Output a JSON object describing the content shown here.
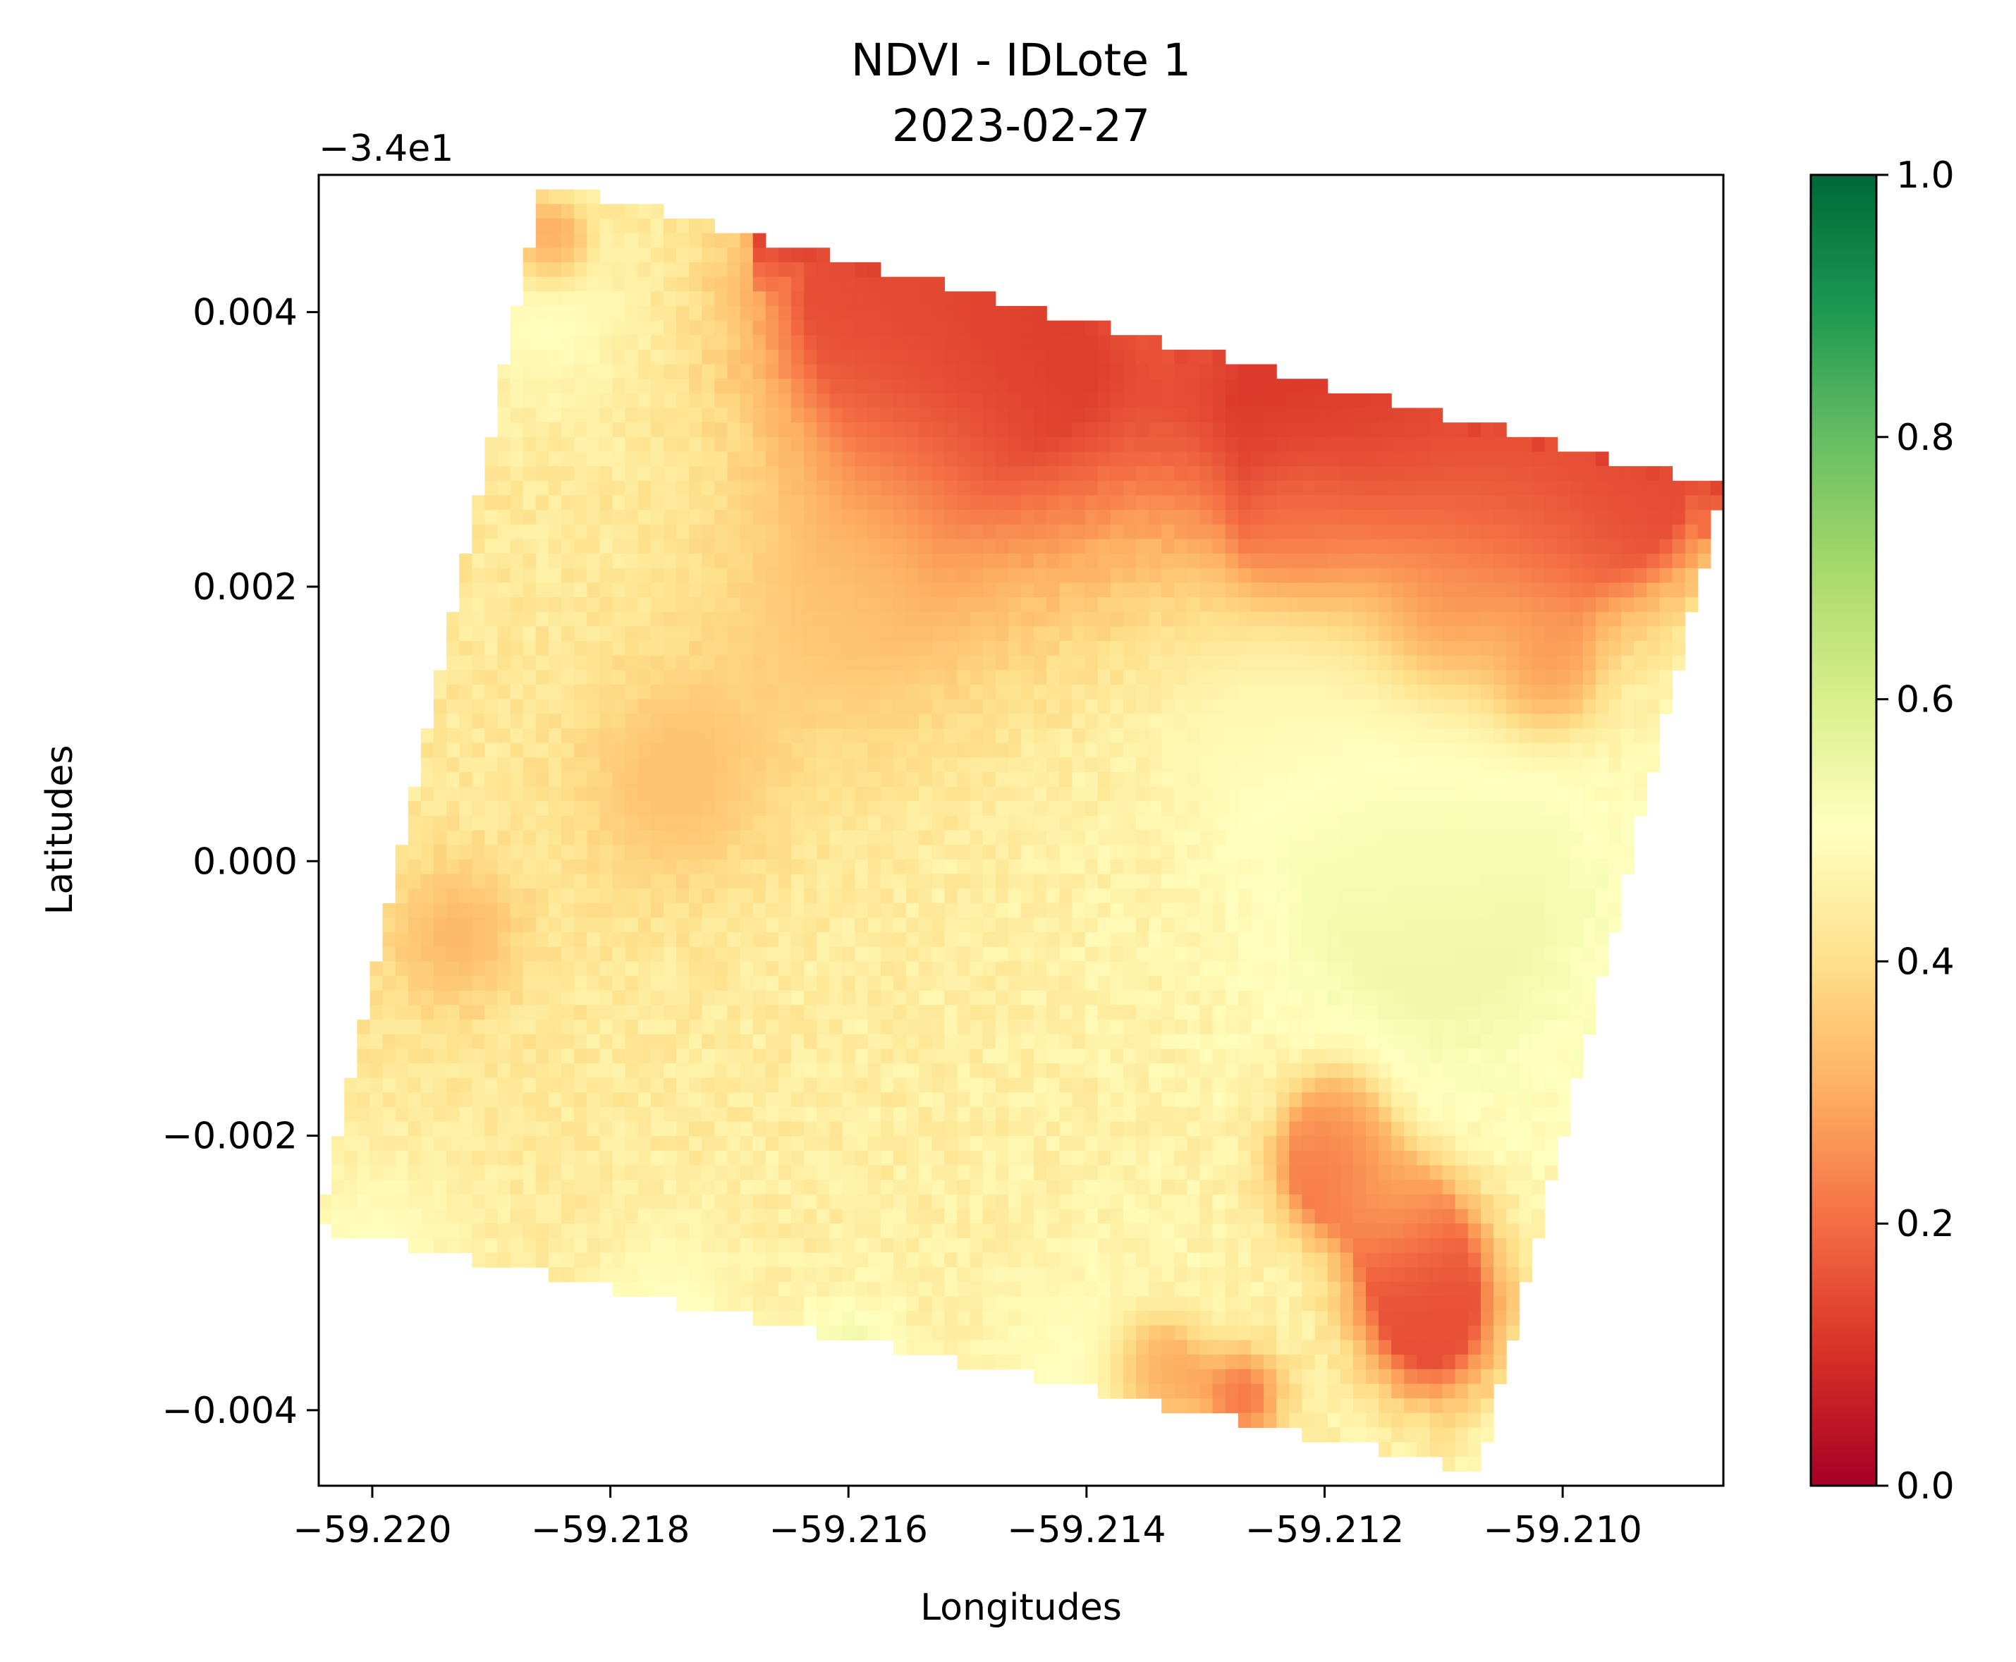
{
  "chart_data": {
    "type": "heatmap",
    "title": "NDVI - IDLote 1",
    "subtitle": "2023-02-27",
    "xlabel": "Longitudes",
    "ylabel": "Latitudes",
    "y_offset_text": "−3.4e1",
    "x_ticks": [
      -59.22,
      -59.218,
      -59.216,
      -59.214,
      -59.212,
      -59.21
    ],
    "x_tick_labels": [
      "−59.220",
      "−59.218",
      "−59.216",
      "−59.214",
      "−59.212",
      "−59.210"
    ],
    "xlim": [
      -59.22045,
      -59.20865
    ],
    "y_ticks": [
      0.004,
      0.002,
      0.0,
      -0.002,
      -0.004
    ],
    "y_tick_labels": [
      "0.004",
      "0.002",
      "0.000",
      "−0.002",
      "−0.004"
    ],
    "ylim": [
      -0.00455,
      0.005
    ],
    "colormap": "RdYlGn",
    "colorbar": {
      "range": [
        0.0,
        1.0
      ],
      "ticks": [
        0.0,
        0.2,
        0.4,
        0.6,
        0.8,
        1.0
      ],
      "tick_labels": [
        "0.0",
        "0.2",
        "0.4",
        "0.6",
        "0.8",
        "1.0"
      ]
    },
    "field_corners": [
      {
        "lon": -59.21855,
        "lat": 0.00495
      },
      {
        "lon": -59.20865,
        "lat": 0.0027
      },
      {
        "lon": -59.2107,
        "lat": -0.00455
      },
      {
        "lon": -59.22045,
        "lat": -0.00275
      }
    ],
    "field_ndvi_typical": 0.42,
    "ndvi_regions": [
      {
        "lon": -59.2145,
        "lat": 0.0036,
        "ndvi": 0.12,
        "radius": 0.0011
      },
      {
        "lon": -59.212,
        "lat": 0.0033,
        "ndvi": 0.11,
        "radius": 0.0009
      },
      {
        "lon": -59.2105,
        "lat": 0.0024,
        "ndvi": 0.14,
        "radius": 0.0008
      },
      {
        "lon": -59.2158,
        "lat": 0.0042,
        "ndvi": 0.15,
        "radius": 0.0007
      },
      {
        "lon": -59.2093,
        "lat": 0.0027,
        "ndvi": 0.14,
        "radius": 0.0005
      },
      {
        "lon": -59.211,
        "lat": 0.0017,
        "ndvi": 0.22,
        "radius": 0.0003
      },
      {
        "lon": -59.2102,
        "lat": 0.0013,
        "ndvi": 0.2,
        "radius": 0.00025
      },
      {
        "lon": -59.2122,
        "lat": 0.0024,
        "ndvi": 0.22,
        "radius": 0.0003
      },
      {
        "lon": -59.2185,
        "lat": 0.0045,
        "ndvi": 0.2,
        "radius": 0.0002
      },
      {
        "lon": -59.2112,
        "lat": -0.003,
        "ndvi": 0.15,
        "radius": 0.0004
      },
      {
        "lon": -59.2111,
        "lat": -0.0035,
        "ndvi": 0.15,
        "radius": 0.0004
      },
      {
        "lon": -59.212,
        "lat": -0.0024,
        "ndvi": 0.2,
        "radius": 0.0003
      },
      {
        "lon": -59.2119,
        "lat": -0.002,
        "ndvi": 0.22,
        "radius": 0.0003
      },
      {
        "lon": -59.2134,
        "lat": -0.0038,
        "ndvi": 0.2,
        "radius": 0.00025
      },
      {
        "lon": -59.2127,
        "lat": -0.004,
        "ndvi": 0.2,
        "radius": 0.00025
      },
      {
        "lon": -59.2114,
        "lat": -0.0026,
        "ndvi": 0.3,
        "radius": 0.0003
      },
      {
        "lon": -59.2193,
        "lat": -0.0006,
        "ndvi": 0.32,
        "radius": 0.0004
      },
      {
        "lon": -59.2175,
        "lat": 0.0005,
        "ndvi": 0.34,
        "radius": 0.0006
      },
      {
        "lon": -59.216,
        "lat": 0.0018,
        "ndvi": 0.36,
        "radius": 0.0009
      },
      {
        "lon": -59.211,
        "lat": -0.0005,
        "ndvi": 0.55,
        "radius": 0.001
      },
      {
        "lon": -59.2112,
        "lat": 0.0008,
        "ndvi": 0.5,
        "radius": 0.001
      },
      {
        "lon": -59.214,
        "lat": -0.0038,
        "ndvi": 0.5,
        "radius": 0.0006
      },
      {
        "lon": -59.2185,
        "lat": 0.004,
        "ndvi": 0.5,
        "radius": 0.0005
      },
      {
        "lon": -59.22,
        "lat": -0.003,
        "ndvi": 0.5,
        "radius": 0.0006
      },
      {
        "lon": -59.2175,
        "lat": -0.0034,
        "ndvi": 0.5,
        "radius": 0.0005
      },
      {
        "lon": -59.216,
        "lat": -0.0037,
        "ndvi": 0.55,
        "radius": 0.0003
      },
      {
        "lon": -59.2125,
        "lat": 0.001,
        "ndvi": 0.48,
        "radius": 0.0006
      }
    ]
  }
}
